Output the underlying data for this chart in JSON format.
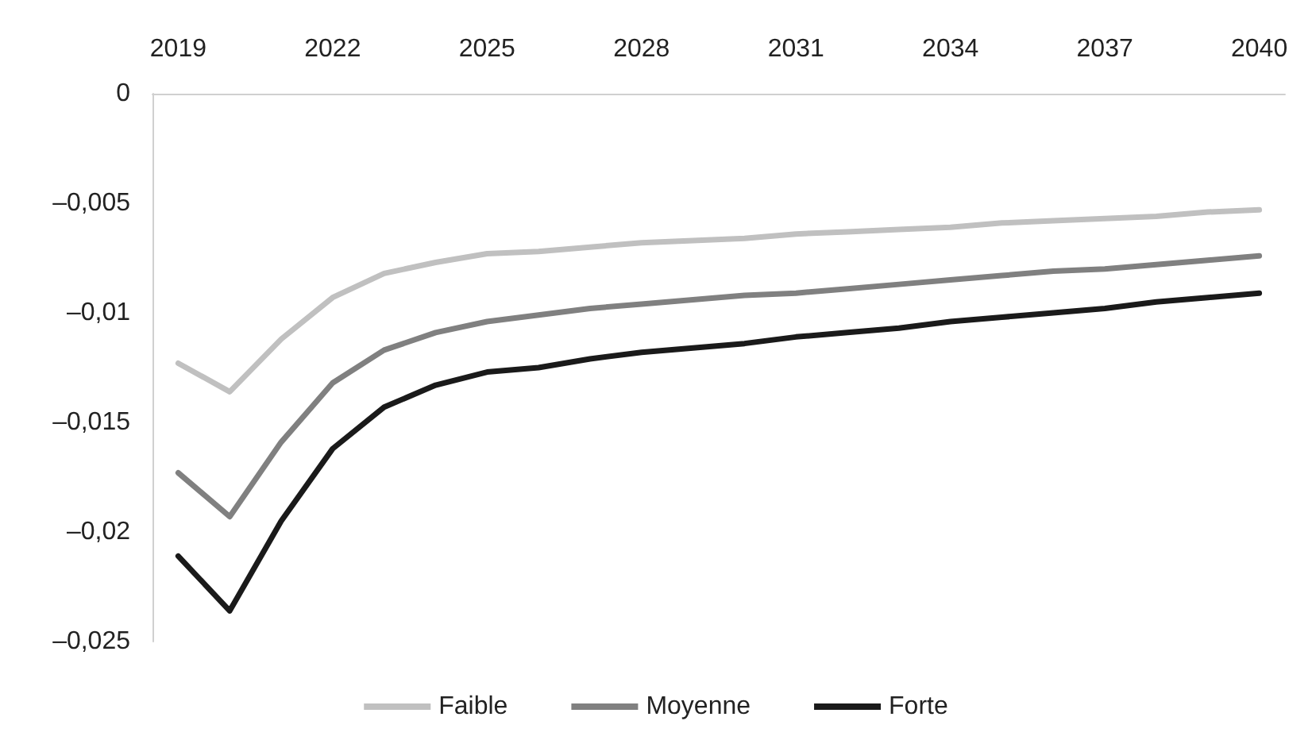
{
  "chart_data": {
    "type": "line",
    "categories": [
      "2019",
      null,
      null,
      "2022",
      null,
      null,
      "2025",
      null,
      null,
      "2028",
      null,
      null,
      "2031",
      null,
      null,
      "2034",
      null,
      null,
      "2037",
      null,
      null,
      "2040"
    ],
    "series": [
      {
        "name": "Faible",
        "color": "#c0c0c0",
        "values": [
          -0.0123,
          -0.0136,
          -0.0112,
          -0.0093,
          -0.0082,
          -0.0077,
          -0.0073,
          -0.0072,
          -0.007,
          -0.0068,
          -0.0067,
          -0.0066,
          -0.0064,
          -0.0063,
          -0.0062,
          -0.0061,
          -0.0059,
          -0.0058,
          -0.0057,
          -0.0056,
          -0.0054,
          -0.0053
        ]
      },
      {
        "name": "Moyenne",
        "color": "#808080",
        "values": [
          -0.0173,
          -0.0193,
          -0.0159,
          -0.0132,
          -0.0117,
          -0.0109,
          -0.0104,
          -0.0101,
          -0.0098,
          -0.0096,
          -0.0094,
          -0.0092,
          -0.0091,
          -0.0089,
          -0.0087,
          -0.0085,
          -0.0083,
          -0.0081,
          -0.008,
          -0.0078,
          -0.0076,
          -0.0074
        ]
      },
      {
        "name": "Forte",
        "color": "#1a1a1a",
        "values": [
          -0.0211,
          -0.0236,
          -0.0195,
          -0.0162,
          -0.0143,
          -0.0133,
          -0.0127,
          -0.0125,
          -0.0121,
          -0.0118,
          -0.0116,
          -0.0114,
          -0.0111,
          -0.0109,
          -0.0107,
          -0.0104,
          -0.0102,
          -0.01,
          -0.0098,
          -0.0095,
          -0.0093,
          -0.0091
        ]
      }
    ],
    "ylim": [
      -0.025,
      0
    ],
    "yticks": [
      {
        "value": -0.025,
        "label": "–0,025"
      },
      {
        "value": -0.02,
        "label": "–0,02"
      },
      {
        "value": -0.015,
        "label": "–0,015"
      },
      {
        "value": -0.01,
        "label": "–0,01"
      },
      {
        "value": -0.005,
        "label": "–0,005"
      },
      0
    ],
    "legend": "bottom",
    "grid": false,
    "marker": "none",
    "line_style": "solid"
  }
}
